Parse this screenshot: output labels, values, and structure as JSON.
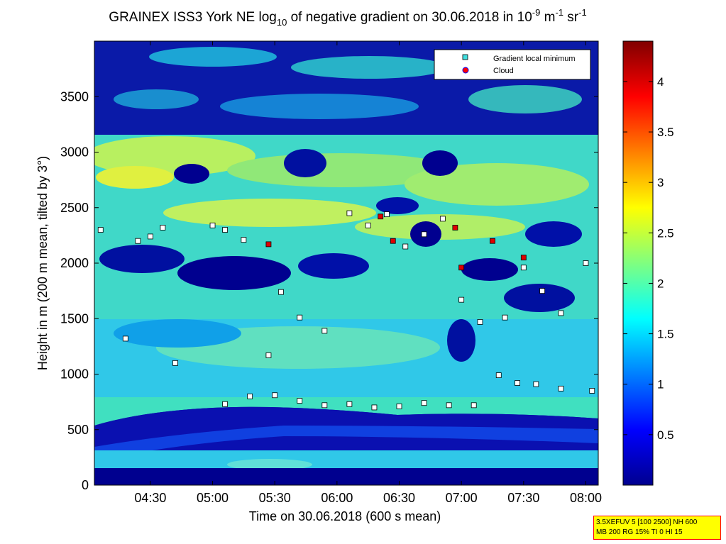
{
  "chart_data": {
    "type": "heatmap",
    "title": "GRAINEX ISS3 York NE log",
    "title_sub": "10",
    "title_rest": " of negative gradient on 30.06.2018 in 10",
    "title_exp1": "-9",
    "title_unit1": " m",
    "title_exp2": "-1",
    "title_unit2": " sr",
    "title_exp3": "-1",
    "xlabel": "Time on 30.06.2018 (600 s mean)",
    "ylabel": "Height in m (200 m mean, tilted by 3°)",
    "x_ticks": [
      "04:30",
      "05:00",
      "05:30",
      "06:00",
      "06:30",
      "07:00",
      "07:30",
      "08:00"
    ],
    "x_tick_hours": [
      4.5,
      5.0,
      5.5,
      6.0,
      6.5,
      7.0,
      7.5,
      8.0
    ],
    "xlim": [
      4.05,
      8.1
    ],
    "y_ticks": [
      0,
      500,
      1000,
      1500,
      2000,
      2500,
      3000,
      3500
    ],
    "ylim": [
      0,
      4000
    ],
    "colorbar": {
      "ticks": [
        "0.5",
        "1",
        "1.5",
        "2",
        "2.5",
        "3",
        "3.5",
        "4"
      ],
      "tick_values": [
        0.5,
        1,
        1.5,
        2,
        2.5,
        3,
        3.5,
        4
      ],
      "range": [
        0,
        4.4
      ],
      "colormap": "jet"
    },
    "legend": {
      "placement": "top-right",
      "entries": [
        {
          "label": "Gradient local minimum",
          "marker": "square",
          "color": "#40e0e0"
        },
        {
          "label": "Cloud",
          "marker": "circle",
          "color": "#ff0000"
        }
      ]
    },
    "series": [
      {
        "name": "Gradient local minimum",
        "x": [
          4.1,
          4.3,
          4.4,
          4.5,
          4.6,
          4.7,
          5.0,
          5.1,
          5.25,
          5.45,
          5.55,
          5.7,
          5.9,
          6.1,
          6.25,
          6.4,
          6.55,
          6.7,
          6.85,
          7.0,
          7.15,
          7.35,
          7.5,
          7.65,
          7.8,
          8.0,
          5.1,
          5.3,
          5.5,
          5.7,
          5.9,
          6.1,
          6.3,
          6.5,
          6.7,
          6.9,
          7.1,
          7.3,
          7.45,
          7.6,
          7.8,
          8.05
        ],
        "y": [
          2300,
          1320,
          2200,
          2240,
          2320,
          1100,
          2340,
          2300,
          2210,
          1170,
          1740,
          1510,
          1390,
          2450,
          2340,
          2440,
          2150,
          2260,
          2400,
          1670,
          1470,
          1510,
          1960,
          1750,
          1550,
          2000,
          730,
          800,
          810,
          760,
          720,
          730,
          700,
          710,
          740,
          720,
          720,
          990,
          920,
          910,
          870,
          850
        ]
      },
      {
        "name": "Cloud",
        "x": [
          5.45,
          6.35,
          6.45,
          6.95,
          7.0,
          7.25,
          7.5
        ],
        "y": [
          2170,
          2420,
          2200,
          2320,
          1960,
          2200,
          2050
        ]
      }
    ]
  },
  "info_box": {
    "line1": "3.5XEFUV 5 [100 2500] NH 600",
    "line2": "MB 200 RG 15% TI 0 HI 15"
  },
  "colors": {
    "background": "#ffffff",
    "info_box_fill": "#ffff00",
    "info_box_border": "#ff0000"
  }
}
